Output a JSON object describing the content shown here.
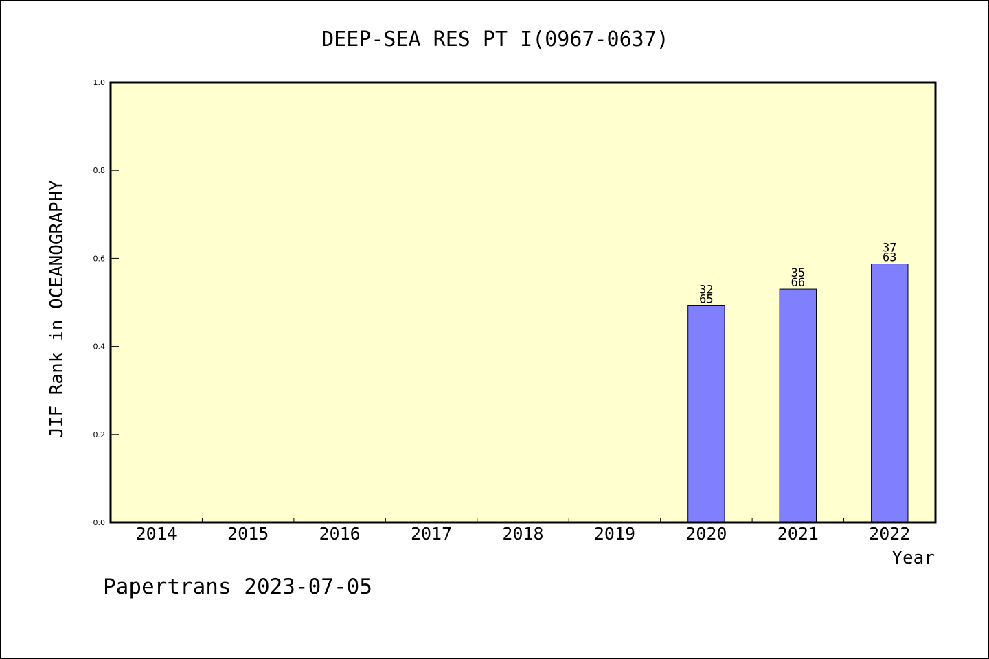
{
  "chart_data": {
    "type": "bar",
    "title": "DEEP-SEA RES PT I(0967-0637)",
    "xlabel": "Year",
    "ylabel": "JIF Rank in OCEANOGRAPHY",
    "ylim": [
      0,
      1
    ],
    "yticks": [
      "0.0",
      "0.2",
      "0.4",
      "0.6",
      "0.8",
      "1.0"
    ],
    "categories": [
      "2014",
      "2015",
      "2016",
      "2017",
      "2018",
      "2019",
      "2020",
      "2021",
      "2022"
    ],
    "values": [
      null,
      null,
      null,
      null,
      null,
      null,
      0.4923,
      0.5303,
      0.5873
    ],
    "bar_labels": [
      null,
      null,
      null,
      null,
      null,
      null,
      {
        "rank": "32",
        "total": "65"
      },
      {
        "rank": "35",
        "total": "66"
      },
      {
        "rank": "37",
        "total": "63"
      }
    ],
    "grid": false,
    "colors": {
      "plot_background": "#ffffd0",
      "bar_fill": "#8080ff",
      "bar_stroke": "#000000"
    }
  },
  "footer": {
    "text": "Papertrans 2023-07-05"
  }
}
